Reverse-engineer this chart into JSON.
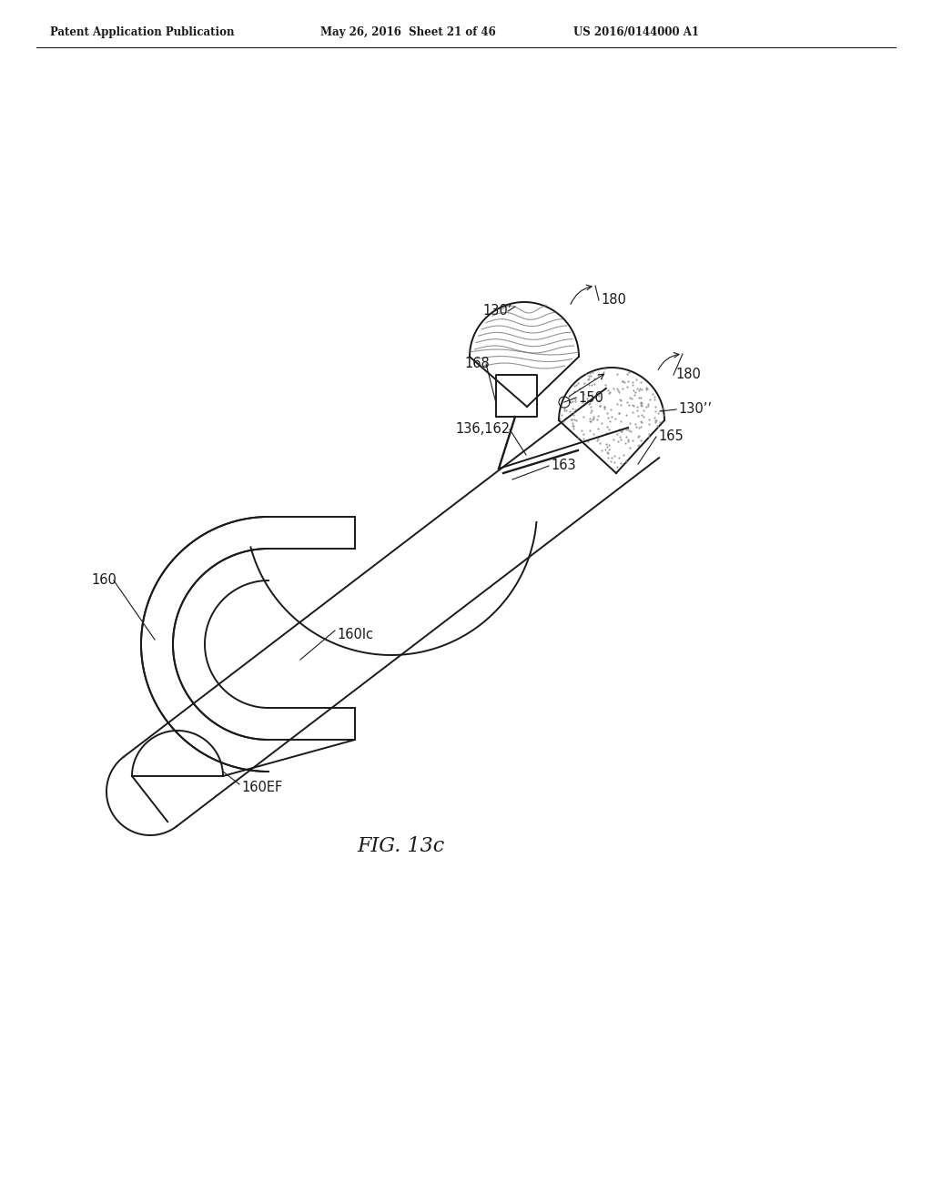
{
  "bg_color": "#ffffff",
  "header_left": "Patent Application Publication",
  "header_mid": "May 26, 2016  Sheet 21 of 46",
  "header_right": "US 2016/0144000 A1",
  "figure_label": "FIG. 13c",
  "labels": {
    "180_top": "180",
    "130prime": "130’",
    "168": "168",
    "150": "150",
    "180_right": "180",
    "136_162": "136,162",
    "130dprime": "130’’",
    "165": "165",
    "163": "163",
    "160": "160",
    "160lc": "160lc",
    "160EF": "160EF"
  }
}
